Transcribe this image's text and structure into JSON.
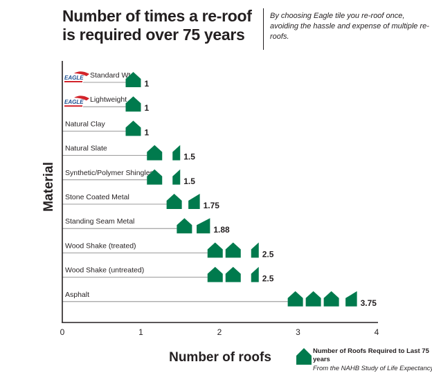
{
  "header": {
    "title": "Number of times a re-roof is required over 75 years",
    "subtitle": "By choosing Eagle tile you re-roof once, avoiding the hassle and expense of multiple re-roofs."
  },
  "colors": {
    "house": "#007a4d",
    "axis": "#231f20",
    "leader": "#7a7a7a",
    "logo_red": "#d2232a",
    "logo_blue": "#1d4f91"
  },
  "legend": {
    "icon": "house-icon",
    "title": "Number of Roofs Required to Last 75 years",
    "source": "From the NAHB Study of Life Expectancy"
  },
  "chart_data": {
    "type": "bar",
    "orientation": "horizontal",
    "mark": "house-icons",
    "title": "Number of times a re-roof is required over 75 years",
    "xlabel": "Number of roofs",
    "ylabel": "Material",
    "xlim": [
      0,
      4
    ],
    "xticks": [
      0,
      1,
      2,
      3,
      4
    ],
    "grid": false,
    "legend_position": "bottom-right",
    "logo_text": "EAGLE",
    "categories": [
      "Standard Wt.",
      "Lightweight",
      "Natural Clay",
      "Natural Slate",
      "Synthetic/Polymer Shingles",
      "Stone Coated Metal",
      "Standing Seam Metal",
      "Wood Shake (treated)",
      "Wood Shake (untreated)",
      "Asphalt"
    ],
    "category_logos": [
      true,
      true,
      false,
      false,
      false,
      false,
      false,
      false,
      false,
      false
    ],
    "values": [
      1,
      1,
      1,
      1.5,
      1.5,
      1.75,
      1.88,
      2.5,
      2.5,
      3.75
    ],
    "value_labels": [
      "1",
      "1",
      "1",
      "1.5",
      "1.5",
      "1.75",
      "1.88",
      "2.5",
      "2.5",
      "3.75"
    ]
  }
}
